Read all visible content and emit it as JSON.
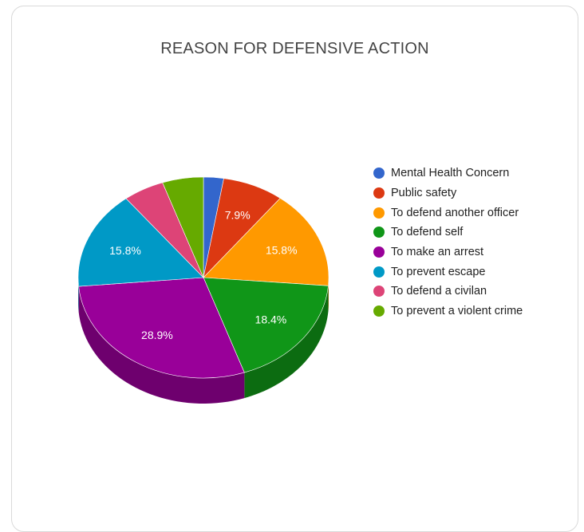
{
  "chart_data": {
    "type": "pie",
    "title": "REASON FOR DEFENSIVE ACTION",
    "three_d": true,
    "legend_position": "right",
    "slices": [
      {
        "label": "Mental Health Concern",
        "value": 2.6,
        "color": "#3366cc",
        "shown_label": ""
      },
      {
        "label": "Public safety",
        "value": 7.9,
        "color": "#dc3912",
        "shown_label": "7.9%"
      },
      {
        "label": "To defend another officer",
        "value": 15.8,
        "color": "#ff9900",
        "shown_label": "15.8%"
      },
      {
        "label": "To defend self",
        "value": 18.4,
        "color": "#109618",
        "shown_label": "18.4%"
      },
      {
        "label": "To make an arrest",
        "value": 28.9,
        "color": "#990099",
        "shown_label": "28.9%"
      },
      {
        "label": "To prevent escape",
        "value": 15.8,
        "color": "#0099c6",
        "shown_label": "15.8%"
      },
      {
        "label": "To defend a civilan",
        "value": 5.3,
        "color": "#dd4477",
        "shown_label": ""
      },
      {
        "label": "To prevent a violent crime",
        "value": 5.3,
        "color": "#66aa00",
        "shown_label": ""
      }
    ]
  }
}
